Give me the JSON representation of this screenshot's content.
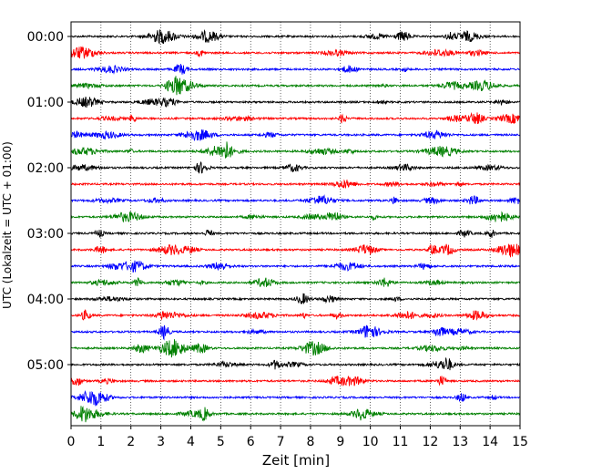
{
  "chart_data": {
    "type": "line",
    "xlabel": "Zeit  [min]",
    "ylabel": "UTC (Lokalzeit = UTC + 01:00)",
    "xlim": [
      0,
      15
    ],
    "x_ticks": [
      "0",
      "1",
      "2",
      "3",
      "4",
      "5",
      "6",
      "7",
      "8",
      "9",
      "10",
      "11",
      "12",
      "13",
      "14",
      "15"
    ],
    "y_ticks": [
      "00:00",
      "01:00",
      "02:00",
      "03:00",
      "04:00",
      "05:00"
    ],
    "rows_per_hour": 4,
    "minutes_per_row": 15,
    "vertical_grid": "dotted",
    "trace_colors": [
      "#000000",
      "#ff0000",
      "#0000ff",
      "#008000"
    ],
    "traces": [
      {
        "time": "00:00",
        "color": "#000000"
      },
      {
        "time": "00:15",
        "color": "#ff0000"
      },
      {
        "time": "00:30",
        "color": "#0000ff"
      },
      {
        "time": "00:45",
        "color": "#008000"
      },
      {
        "time": "01:00",
        "color": "#000000"
      },
      {
        "time": "01:15",
        "color": "#ff0000"
      },
      {
        "time": "01:30",
        "color": "#0000ff"
      },
      {
        "time": "01:45",
        "color": "#008000"
      },
      {
        "time": "02:00",
        "color": "#000000"
      },
      {
        "time": "02:15",
        "color": "#ff0000"
      },
      {
        "time": "02:30",
        "color": "#0000ff"
      },
      {
        "time": "02:45",
        "color": "#008000"
      },
      {
        "time": "03:00",
        "color": "#000000"
      },
      {
        "time": "03:15",
        "color": "#ff0000"
      },
      {
        "time": "03:30",
        "color": "#0000ff"
      },
      {
        "time": "03:45",
        "color": "#008000"
      },
      {
        "time": "04:00",
        "color": "#000000"
      },
      {
        "time": "04:15",
        "color": "#ff0000"
      },
      {
        "time": "04:30",
        "color": "#0000ff"
      },
      {
        "time": "04:45",
        "color": "#008000"
      },
      {
        "time": "05:00",
        "color": "#000000"
      },
      {
        "time": "05:15",
        "color": "#ff0000"
      },
      {
        "time": "05:30",
        "color": "#0000ff"
      },
      {
        "time": "05:45",
        "color": "#008000"
      }
    ]
  }
}
